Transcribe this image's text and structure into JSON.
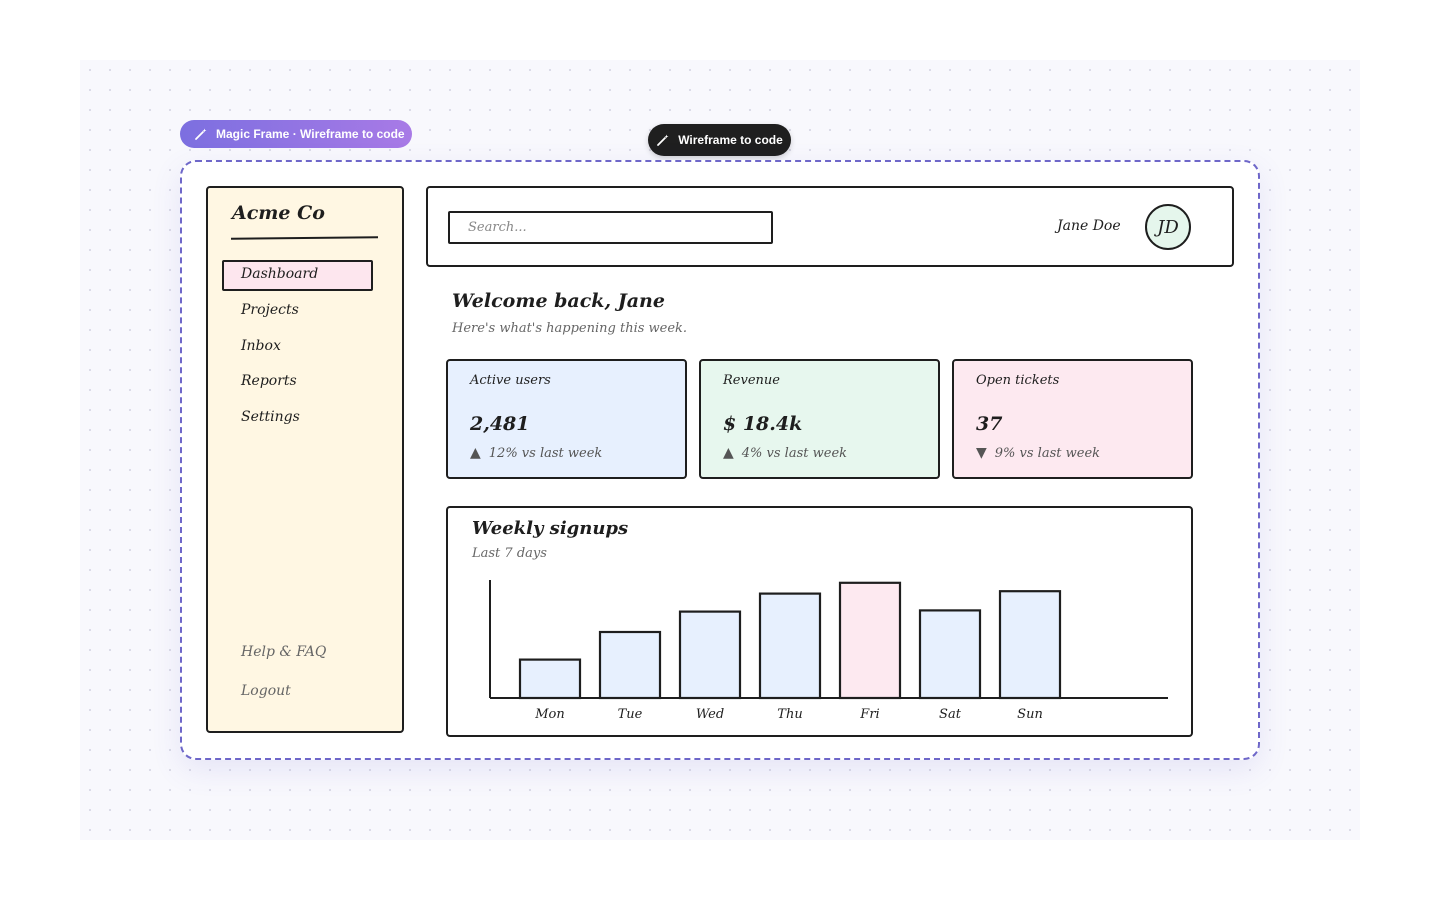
{
  "toolbar": {
    "frame_label": "Magic Frame · Wireframe to code",
    "generate_label": "Wireframe to code",
    "wand_icon": "magic-wand-icon"
  },
  "sidebar": {
    "brand": "Acme Co",
    "items": [
      {
        "label": "Dashboard",
        "active": true
      },
      {
        "label": "Projects"
      },
      {
        "label": "Inbox"
      },
      {
        "label": "Reports"
      },
      {
        "label": "Settings"
      }
    ],
    "footer": [
      {
        "label": "Help & FAQ"
      },
      {
        "label": "Logout"
      }
    ]
  },
  "header": {
    "search_placeholder": "Search...",
    "username": "Jane Doe",
    "avatar_initials": "JD"
  },
  "main": {
    "welcome": "Welcome back, Jane",
    "subtitle": "Here's what's happening this week."
  },
  "stats": [
    {
      "title": "Active users",
      "value": "2,481",
      "trend": "12% vs last week",
      "direction": "up",
      "color": "#e7f0fe"
    },
    {
      "title": "Revenue",
      "value": "$ 18.4k",
      "trend": "4% vs last week",
      "direction": "up",
      "color": "#e7f7ee"
    },
    {
      "title": "Open tickets",
      "value": "37",
      "trend": "9% vs last week",
      "direction": "down",
      "color": "#fde9f0"
    }
  ],
  "colors": {
    "accent": "#6e67c9",
    "bar_default": "#e7f0fe",
    "bar_highlight": "#fde9f0",
    "sidebar_bg": "#fff7e3",
    "stroke": "#1e1e1e"
  },
  "chart_data": {
    "type": "bar",
    "title": "Weekly signups",
    "subtitle": "Last 7 days",
    "categories": [
      "Mon",
      "Tue",
      "Wed",
      "Thu",
      "Fri",
      "Sat",
      "Sun"
    ],
    "values": [
      32,
      55,
      72,
      87,
      96,
      73,
      89
    ],
    "highlight_index": 4,
    "ylim": [
      0,
      100
    ],
    "grid": false,
    "legend": "none"
  }
}
